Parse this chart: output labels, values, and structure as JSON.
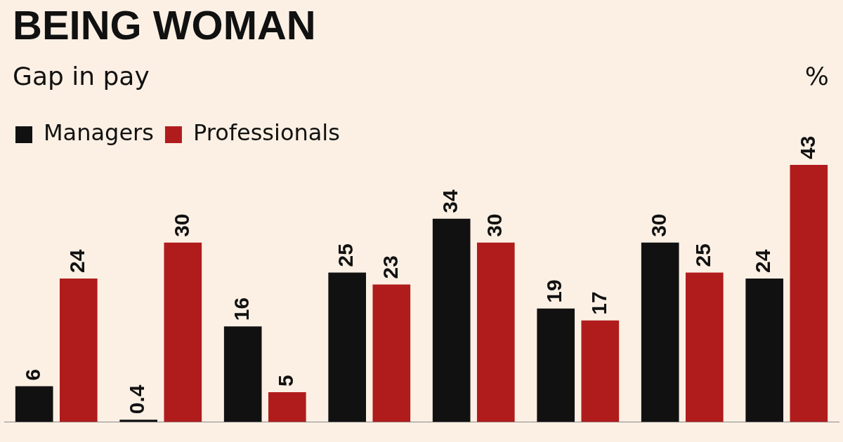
{
  "chart_data": {
    "type": "bar",
    "title": "BEING WOMAN",
    "subtitle": "Gap in pay",
    "annotations": [
      "%"
    ],
    "categories": [
      null,
      null,
      null,
      null,
      null,
      null,
      null,
      null
    ],
    "data_labels": true,
    "legend": "top left",
    "grid": false,
    "series": [
      {
        "name": "Managers",
        "color": "#111111",
        "values": [
          6,
          0.4,
          16,
          25,
          34,
          19,
          30,
          24
        ]
      },
      {
        "name": "Professionals",
        "color": "#b01c1c",
        "values": [
          24,
          30,
          5,
          23,
          30,
          17,
          25,
          43
        ]
      }
    ]
  }
}
